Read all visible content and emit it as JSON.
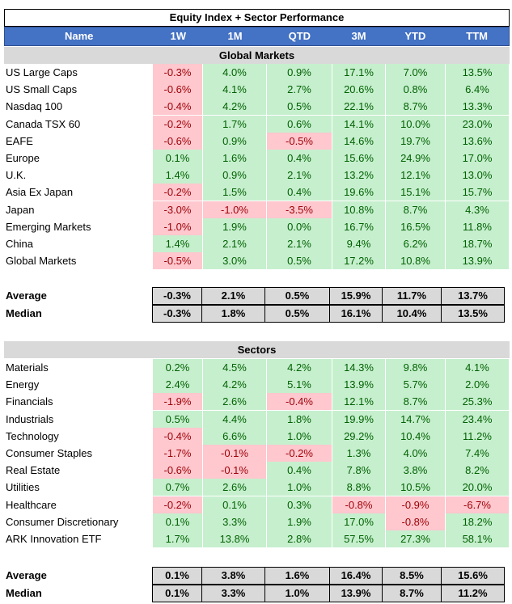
{
  "title": "Equity Index + Sector Performance",
  "columns": [
    "Name",
    "1W",
    "1M",
    "QTD",
    "3M",
    "YTD",
    "TTM"
  ],
  "global": {
    "label": "Global Markets",
    "rows": [
      {
        "name": "US Large Caps",
        "v": [
          "-0.3%",
          "4.0%",
          "0.9%",
          "17.1%",
          "7.0%",
          "13.5%"
        ]
      },
      {
        "name": "US Small Caps",
        "v": [
          "-0.6%",
          "4.1%",
          "2.7%",
          "20.6%",
          "0.8%",
          "6.4%"
        ]
      },
      {
        "name": "Nasdaq 100",
        "v": [
          "-0.4%",
          "4.2%",
          "0.5%",
          "22.1%",
          "8.7%",
          "13.3%"
        ]
      },
      {
        "name": "Canada TSX 60",
        "v": [
          "-0.2%",
          "1.7%",
          "0.6%",
          "14.1%",
          "10.0%",
          "23.0%"
        ]
      },
      {
        "name": "EAFE",
        "v": [
          "-0.6%",
          "0.9%",
          "-0.5%",
          "14.6%",
          "19.7%",
          "13.6%"
        ]
      },
      {
        "name": "Europe",
        "v": [
          "0.1%",
          "1.6%",
          "0.4%",
          "15.6%",
          "24.9%",
          "17.0%"
        ]
      },
      {
        "name": "U.K.",
        "v": [
          "1.4%",
          "0.9%",
          "2.1%",
          "13.2%",
          "12.1%",
          "13.0%"
        ]
      },
      {
        "name": "Asia Ex Japan",
        "v": [
          "-0.2%",
          "1.5%",
          "0.4%",
          "19.6%",
          "15.1%",
          "15.7%"
        ]
      },
      {
        "name": "Japan",
        "v": [
          "-3.0%",
          "-1.0%",
          "-3.5%",
          "10.8%",
          "8.7%",
          "4.3%"
        ]
      },
      {
        "name": "Emerging Markets",
        "v": [
          "-1.0%",
          "1.9%",
          "0.0%",
          "16.7%",
          "16.5%",
          "11.8%"
        ]
      },
      {
        "name": "China",
        "v": [
          "1.4%",
          "2.1%",
          "2.1%",
          "9.4%",
          "6.2%",
          "18.7%"
        ]
      },
      {
        "name": "Global Markets",
        "v": [
          "-0.5%",
          "3.0%",
          "0.5%",
          "17.2%",
          "10.8%",
          "13.9%"
        ]
      }
    ],
    "average": {
      "name": "Average",
      "v": [
        "-0.3%",
        "2.1%",
        "0.5%",
        "15.9%",
        "11.7%",
        "13.7%"
      ]
    },
    "median": {
      "name": "Median",
      "v": [
        "-0.3%",
        "1.8%",
        "0.5%",
        "16.1%",
        "10.4%",
        "13.5%"
      ]
    }
  },
  "sectors": {
    "label": "Sectors",
    "rows": [
      {
        "name": "Materials",
        "v": [
          "0.2%",
          "4.5%",
          "4.2%",
          "14.3%",
          "9.8%",
          "4.1%"
        ]
      },
      {
        "name": "Energy",
        "v": [
          "2.4%",
          "4.2%",
          "5.1%",
          "13.9%",
          "5.7%",
          "2.0%"
        ]
      },
      {
        "name": "Financials",
        "v": [
          "-1.9%",
          "2.6%",
          "-0.4%",
          "12.1%",
          "8.7%",
          "25.3%"
        ]
      },
      {
        "name": "Industrials",
        "v": [
          "0.5%",
          "4.4%",
          "1.8%",
          "19.9%",
          "14.7%",
          "23.4%"
        ]
      },
      {
        "name": "Technology",
        "v": [
          "-0.4%",
          "6.6%",
          "1.0%",
          "29.2%",
          "10.4%",
          "11.2%"
        ]
      },
      {
        "name": "Consumer Staples",
        "v": [
          "-1.7%",
          "-0.1%",
          "-0.2%",
          "1.3%",
          "4.0%",
          "7.4%"
        ]
      },
      {
        "name": "Real Estate",
        "v": [
          "-0.6%",
          "-0.1%",
          "0.4%",
          "7.8%",
          "3.8%",
          "8.2%"
        ]
      },
      {
        "name": "Utilities",
        "v": [
          "0.7%",
          "2.6%",
          "1.0%",
          "8.8%",
          "10.5%",
          "20.0%"
        ]
      },
      {
        "name": "Healthcare",
        "v": [
          "-0.2%",
          "0.1%",
          "0.3%",
          "-0.8%",
          "-0.9%",
          "-6.7%"
        ]
      },
      {
        "name": "Consumer Discretionary",
        "v": [
          "0.1%",
          "3.3%",
          "1.9%",
          "17.0%",
          "-0.8%",
          "18.2%"
        ]
      },
      {
        "name": "ARK Innovation ETF",
        "v": [
          "1.7%",
          "13.8%",
          "2.8%",
          "57.5%",
          "27.3%",
          "58.1%"
        ]
      }
    ],
    "average": {
      "name": "Average",
      "v": [
        "0.1%",
        "3.8%",
        "1.6%",
        "16.4%",
        "8.5%",
        "15.6%"
      ]
    },
    "median": {
      "name": "Median",
      "v": [
        "0.1%",
        "3.3%",
        "1.0%",
        "13.9%",
        "8.7%",
        "11.2%"
      ]
    }
  },
  "colors": {
    "header_bg": "#4472c4",
    "positive_bg": "#c6efce",
    "positive_text": "#006100",
    "negative_bg": "#ffc7ce",
    "negative_text": "#9c0006",
    "section_bg": "#d9d9d9"
  }
}
